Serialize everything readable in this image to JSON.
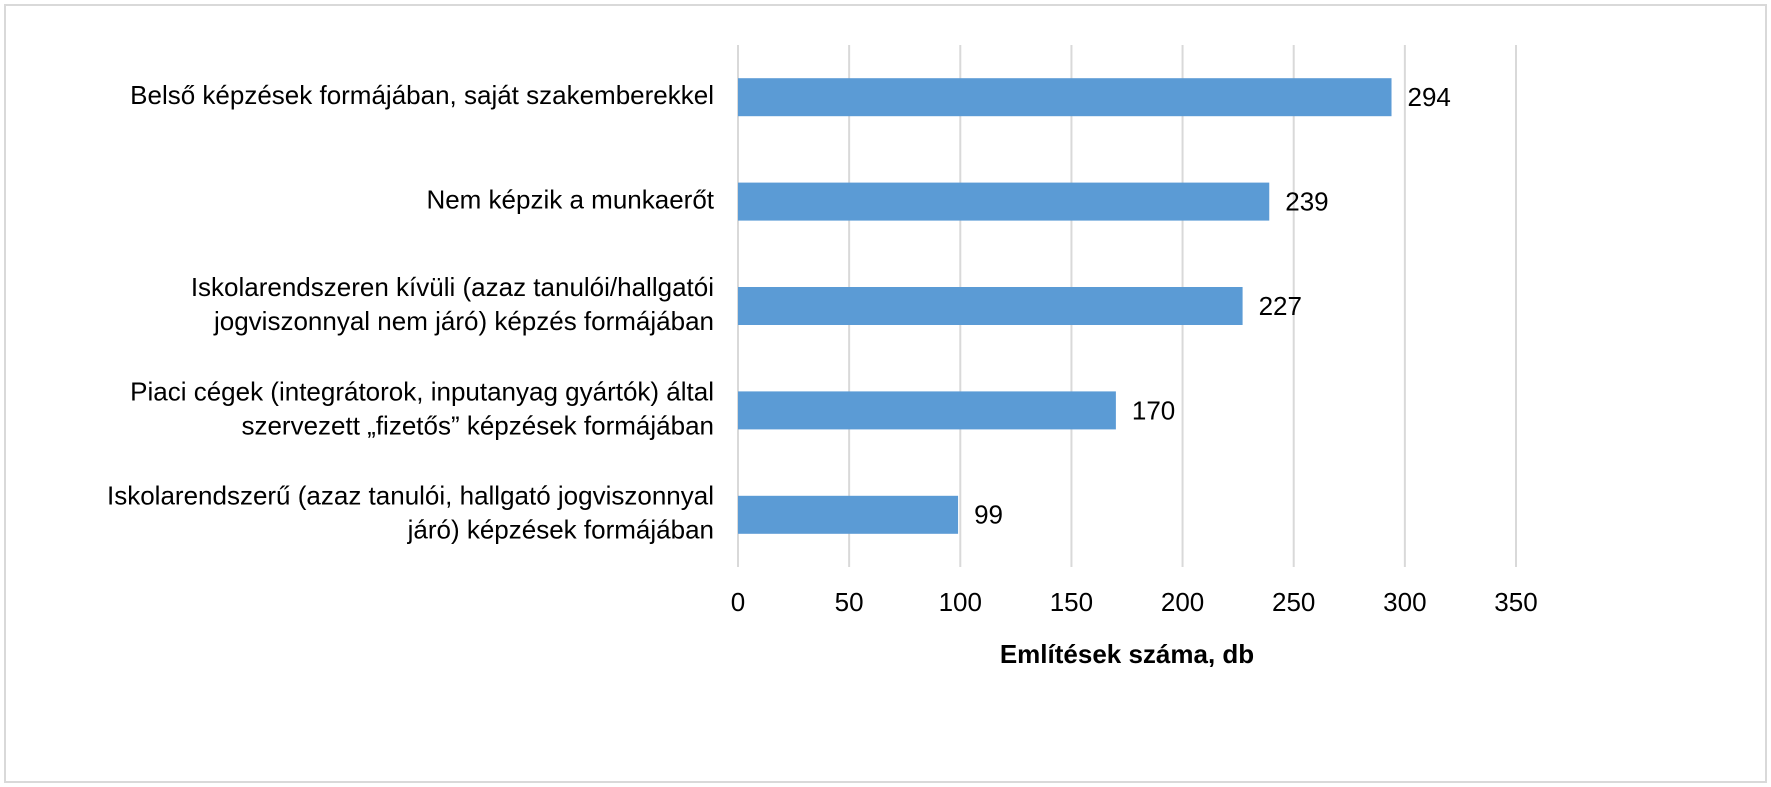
{
  "chart_data": {
    "type": "bar",
    "orientation": "horizontal",
    "categories": [
      [
        "Belső képzések formájában, saját szakemberekkel"
      ],
      [
        "Nem képzik a munkaerőt"
      ],
      [
        "Iskolarendszeren kívüli (azaz tanulói/hallgatói",
        "jogviszonnyal nem járó) képzés formájában"
      ],
      [
        "Piaci cégek (integrátorok, inputanyag gyártók) által",
        "szervezett „fizetős” képzések formájában"
      ],
      [
        "Iskolarendszerű (azaz tanulói, hallgató jogviszonnyal",
        "járó) képzések formájában"
      ]
    ],
    "values": [
      294,
      239,
      227,
      170,
      99
    ],
    "color": "#5b9bd5",
    "xlabel": "Említések száma, db",
    "xlim": [
      0,
      350
    ],
    "xticks": [
      0,
      50,
      100,
      150,
      200,
      250,
      300,
      350
    ],
    "grid": true
  }
}
